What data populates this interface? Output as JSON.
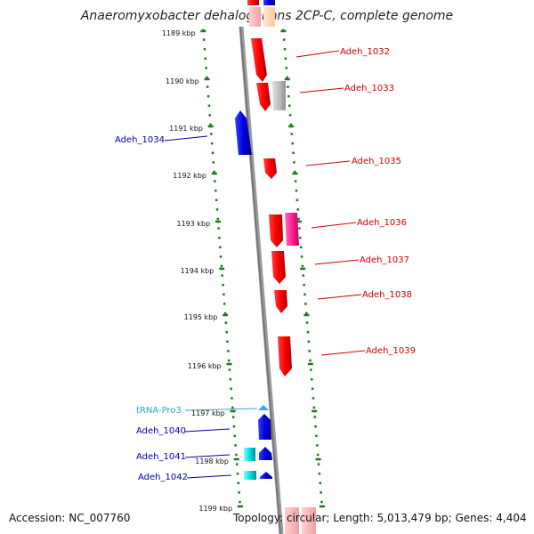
{
  "title": "Anaeromyxobacter dehalogenans 2CP-C, complete genome",
  "accession": "Accession: NC_007760",
  "topology": "Topology: circular; Length: 5,013,479 bp; Genes: 4,404",
  "colors": {
    "forward": "#e60000",
    "reverse": "#0000cc",
    "rna": "#00cccc",
    "pink": "#ff3399",
    "grey": "#bbbbbb",
    "peach": "#ffd0b0",
    "backbone": "#888888",
    "ticks": "#1a7a1a",
    "fwd_label": "#cc0000",
    "rev_label": "#0000aa",
    "rna_label": "#22aacc"
  },
  "scale": [
    {
      "label": "1189 kbp"
    },
    {
      "label": "1190 kbp"
    },
    {
      "label": "1191 kbp"
    },
    {
      "label": "1192 kbp"
    },
    {
      "label": "1193 kbp"
    },
    {
      "label": "1194 kbp"
    },
    {
      "label": "1195 kbp"
    },
    {
      "label": "1196 kbp"
    },
    {
      "label": "1197 kbp"
    },
    {
      "label": "1198 kbp"
    },
    {
      "label": "1199 kbp"
    }
  ],
  "genes": [
    {
      "name": "Adeh_1032",
      "strand": "forward"
    },
    {
      "name": "Adeh_1033",
      "strand": "forward"
    },
    {
      "name": "Adeh_1034",
      "strand": "reverse"
    },
    {
      "name": "Adeh_1035",
      "strand": "forward"
    },
    {
      "name": "Adeh_1036",
      "strand": "forward"
    },
    {
      "name": "Adeh_1037",
      "strand": "forward"
    },
    {
      "name": "Adeh_1038",
      "strand": "forward"
    },
    {
      "name": "Adeh_1039",
      "strand": "forward"
    },
    {
      "name": "tRNA-Pro3",
      "strand": "reverse"
    },
    {
      "name": "Adeh_1040",
      "strand": "reverse"
    },
    {
      "name": "Adeh_1041",
      "strand": "reverse"
    },
    {
      "name": "Adeh_1042",
      "strand": "reverse"
    }
  ]
}
